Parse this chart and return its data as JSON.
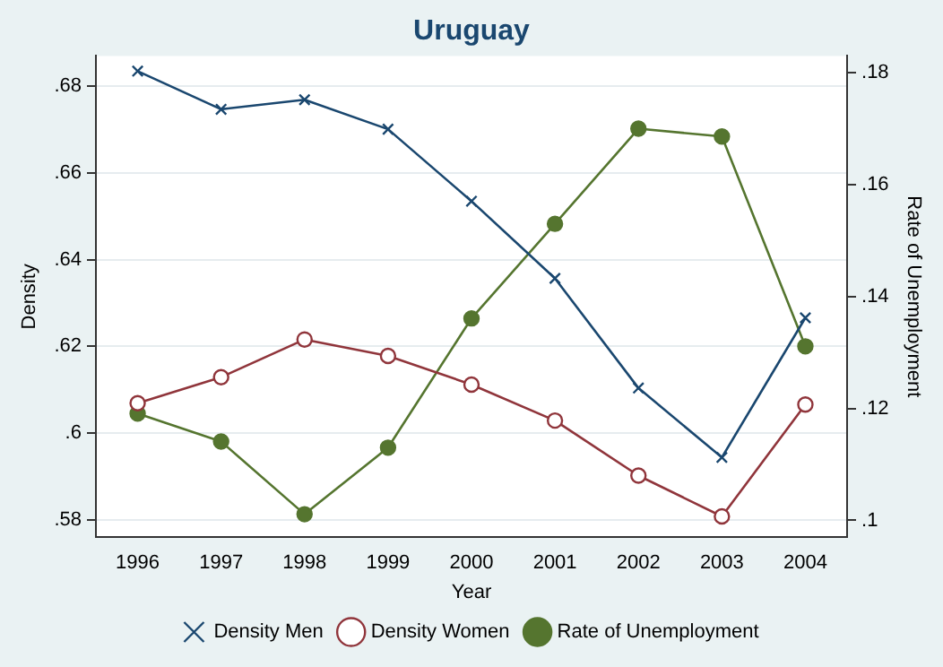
{
  "chart_data": {
    "type": "line",
    "title": "Uruguay",
    "xlabel": "Year",
    "ylabel": "Density",
    "y2label": "Rate of Unemployment",
    "categories": [
      "1996",
      "1997",
      "1998",
      "1999",
      "2000",
      "2001",
      "2002",
      "2003",
      "2004"
    ],
    "series": [
      {
        "name": "Density Men",
        "color": "#1a476f",
        "marker": "cross",
        "values": [
          0.6835,
          0.6747,
          0.6769,
          0.6701,
          0.6535,
          0.6357,
          0.6104,
          0.5944,
          0.6266
        ]
      },
      {
        "name": "Density Women",
        "color": "#90353b",
        "marker": "circle",
        "values": [
          0.6069,
          0.6129,
          0.6216,
          0.6178,
          0.6112,
          0.6029,
          0.5902,
          0.5808,
          0.6066
        ]
      },
      {
        "name": "Rate of Unemployment",
        "color": "#55752f",
        "marker": "circle",
        "axis": "y2",
        "values": [
          0.1191,
          0.1141,
          0.1011,
          0.113,
          0.1361,
          0.153,
          0.17,
          0.1686,
          0.1311
        ]
      }
    ],
    "ylim": [
      0.576,
      0.687
    ],
    "yticks": [
      {
        "value": 0.58,
        "label": ".58"
      },
      {
        "value": 0.6,
        "label": ".6"
      },
      {
        "value": 0.62,
        "label": ".62"
      },
      {
        "value": 0.64,
        "label": ".64"
      },
      {
        "value": 0.66,
        "label": ".66"
      },
      {
        "value": 0.68,
        "label": ".68"
      }
    ],
    "y2lim": [
      0.097,
      0.183
    ],
    "y2ticks": [
      {
        "value": 0.1,
        "label": ".1"
      },
      {
        "value": 0.12,
        "label": ".12"
      },
      {
        "value": 0.14,
        "label": ".14"
      },
      {
        "value": 0.16,
        "label": ".16"
      },
      {
        "value": 0.18,
        "label": ".18"
      }
    ],
    "grid": "y",
    "legend": "bottom",
    "line_style": "solid"
  }
}
